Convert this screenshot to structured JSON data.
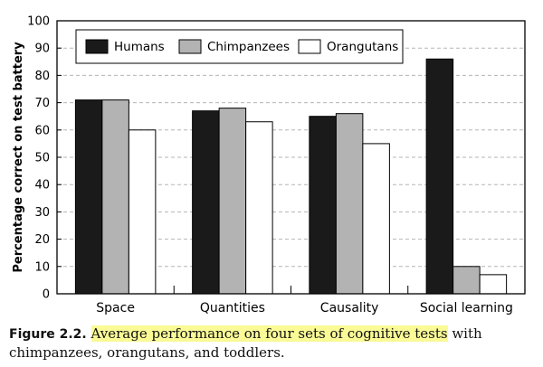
{
  "chart_data": {
    "type": "bar",
    "categories": [
      "Space",
      "Quantities",
      "Causality",
      "Social learning"
    ],
    "series": [
      {
        "name": "Humans",
        "color": "#1a1a1a",
        "values": [
          71,
          67,
          65,
          86
        ]
      },
      {
        "name": "Chimpanzees",
        "color": "#b3b3b3",
        "values": [
          71,
          68,
          66,
          10
        ]
      },
      {
        "name": "Orangutans",
        "color": "#ffffff",
        "values": [
          60,
          63,
          55,
          7
        ]
      }
    ],
    "ylabel": "Percentage correct on test battery",
    "xlabel": "",
    "ylim": [
      0,
      100
    ],
    "yticks": [
      0,
      10,
      20,
      30,
      40,
      50,
      60,
      70,
      80,
      90,
      100
    ],
    "grid": "horizontal-dashed",
    "legend_position": "top-left"
  },
  "caption": {
    "label": "Figure 2.2.",
    "highlighted_text": "Average performance on four sets of cognitive tests",
    "rest_text": " with chimpanzees, orangutans, and toddlers."
  }
}
